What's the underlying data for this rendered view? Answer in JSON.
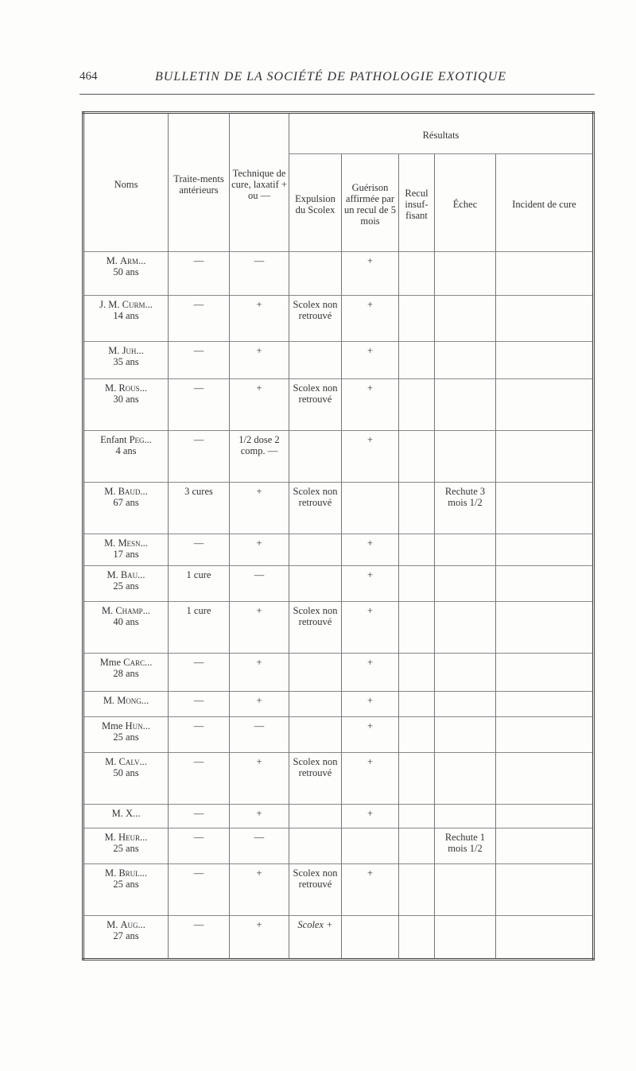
{
  "page_number": "464",
  "running_head": "BULLETIN DE LA SOCIÉTÉ DE PATHOLOGIE EXOTIQUE",
  "headers": {
    "noms": "Noms",
    "traitements": "Traite-ments antérieurs",
    "technique": "Technique de cure, laxatif + ou —",
    "resultats": "Résultats",
    "expulsion": "Expulsion du Scolex",
    "guerison": "Guérison affirmée par un recul de 5 mois",
    "recul": "Recul insuf-fisant",
    "echec": "Échec",
    "incident": "Incident de cure"
  },
  "rows": [
    {
      "prefix": "M.",
      "surname": "Arm...",
      "age": "50 ans",
      "traitements": "—",
      "technique": "—",
      "expulsion": "",
      "guerison": "+",
      "recul": "",
      "echec": "",
      "incident": "",
      "h": 55
    },
    {
      "prefix": "J. M.",
      "surname": "Curm...",
      "age": "14 ans",
      "traitements": "—",
      "technique": "+",
      "expulsion": "Scolex non retrouvé",
      "guerison": "+",
      "recul": "",
      "echec": "",
      "incident": "",
      "h": 58
    },
    {
      "prefix": "M.",
      "surname": "Juh...",
      "age": "35 ans",
      "traitements": "—",
      "technique": "+",
      "expulsion": "",
      "guerison": "+",
      "recul": "",
      "echec": "",
      "incident": "",
      "h": 47
    },
    {
      "prefix": "M.",
      "surname": "Rous...",
      "age": "30 ans",
      "traitements": "—",
      "technique": "+",
      "expulsion": "Scolex non retrouvé",
      "guerison": "+",
      "recul": "",
      "echec": "",
      "incident": "",
      "h": 65
    },
    {
      "prefix": "Enfant",
      "surname": "Peg...",
      "age": "4 ans",
      "traitements": "—",
      "technique": "1/2 dose 2 comp. —",
      "expulsion": "",
      "guerison": "+",
      "recul": "",
      "echec": "",
      "incident": "",
      "h": 65
    },
    {
      "prefix": "M.",
      "surname": "Baud...",
      "age": "67 ans",
      "traitements": "3 cures",
      "technique": "+",
      "expulsion": "Scolex non retrouvé",
      "guerison": "",
      "recul": "",
      "echec": "Rechute 3 mois 1/2",
      "incident": "",
      "h": 65
    },
    {
      "prefix": "M.",
      "surname": "Mesn...",
      "age": "17 ans",
      "traitements": "—",
      "technique": "+",
      "expulsion": "",
      "guerison": "+",
      "recul": "",
      "echec": "",
      "incident": "",
      "h": 40
    },
    {
      "prefix": "M.",
      "surname": "Bau...",
      "age": "25 ans",
      "traitements": "1 cure",
      "technique": "—",
      "expulsion": "",
      "guerison": "+",
      "recul": "",
      "echec": "",
      "incident": "",
      "h": 45
    },
    {
      "prefix": "M.",
      "surname": "Champ...",
      "age": "40 ans",
      "traitements": "1 cure",
      "technique": "+",
      "expulsion": "Scolex non retrouvé",
      "guerison": "+",
      "recul": "",
      "echec": "",
      "incident": "",
      "h": 65
    },
    {
      "prefix": "Mme",
      "surname": "Carc...",
      "age": "28 ans",
      "traitements": "—",
      "technique": "+",
      "expulsion": "",
      "guerison": "+",
      "recul": "",
      "echec": "",
      "incident": "",
      "h": 48
    },
    {
      "prefix": "M.",
      "surname": "Mong...",
      "age": "",
      "traitements": "—",
      "technique": "+",
      "expulsion": "",
      "guerison": "+",
      "recul": "",
      "echec": "",
      "incident": "",
      "h": 32
    },
    {
      "prefix": "Mme",
      "surname": "Hun...",
      "age": "25 ans",
      "traitements": "—",
      "technique": "—",
      "expulsion": "",
      "guerison": "+",
      "recul": "",
      "echec": "",
      "incident": "",
      "h": 45
    },
    {
      "prefix": "M.",
      "surname": "Calv...",
      "age": "50 ans",
      "traitements": "—",
      "technique": "+",
      "expulsion": "Scolex non retrouvé",
      "guerison": "+",
      "recul": "",
      "echec": "",
      "incident": "",
      "h": 65
    },
    {
      "prefix": "M.",
      "surname": "X...",
      "age": "",
      "traitements": "—",
      "technique": "+",
      "expulsion": "",
      "guerison": "+",
      "recul": "",
      "echec": "",
      "incident": "",
      "h": 30
    },
    {
      "prefix": "M.",
      "surname": "Heur...",
      "age": "25 ans",
      "traitements": "—",
      "technique": "—",
      "expulsion": "",
      "guerison": "",
      "recul": "",
      "echec": "Rechute 1 mois 1/2",
      "incident": "",
      "h": 45
    },
    {
      "prefix": "M.",
      "surname": "Brul...",
      "age": "25 ans",
      "traitements": "—",
      "technique": "+",
      "expulsion": "Scolex non retrouvé",
      "guerison": "+",
      "recul": "",
      "echec": "",
      "incident": "",
      "h": 65
    },
    {
      "prefix": "M.",
      "surname": "Aug...",
      "age": "27 ans",
      "traitements": "—",
      "technique": "+",
      "expulsion": "Scolex +",
      "expulsion_italic": true,
      "guerison": "",
      "recul": "",
      "echec": "",
      "incident": "",
      "h": 55
    }
  ]
}
